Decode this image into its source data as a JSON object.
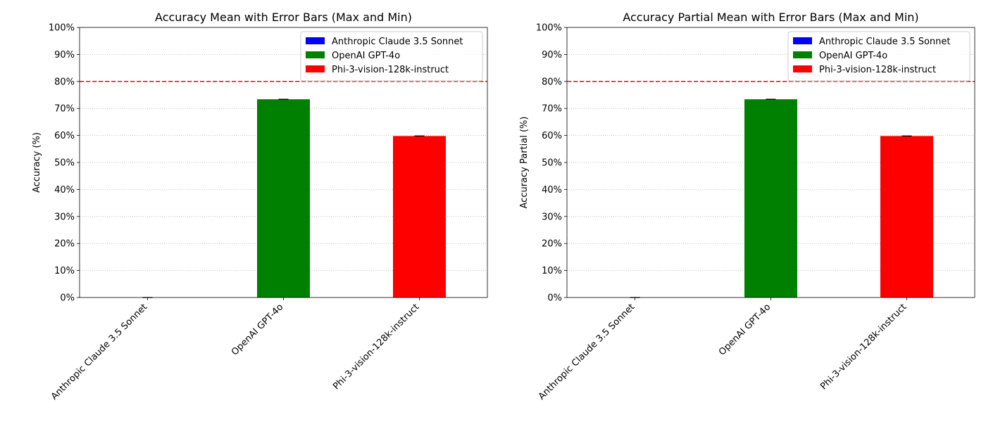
{
  "chart_data": [
    {
      "type": "bar",
      "title": "Accuracy Mean with Error Bars (Max and Min)",
      "xlabel": "",
      "ylabel": "Accuracy (%)",
      "categories": [
        "Anthropic Claude 3.5 Sonnet",
        "OpenAI GPT-4o",
        "Phi-3-vision-128k-instruct"
      ],
      "values": [
        0,
        73.4,
        59.8
      ],
      "error_min": [
        0,
        73.4,
        59.8
      ],
      "error_max": [
        0,
        73.4,
        59.8
      ],
      "colors": [
        "#0000ff",
        "#008000",
        "#ff0000"
      ],
      "ylim": [
        0,
        100
      ],
      "yticks": [
        "0%",
        "10%",
        "20%",
        "30%",
        "40%",
        "50%",
        "60%",
        "70%",
        "80%",
        "90%",
        "100%"
      ],
      "threshold": 80,
      "threshold_color": "#ff0000",
      "grid": "y-dotted",
      "legend": {
        "placement": "top-right",
        "entries": [
          "Anthropic Claude 3.5 Sonnet",
          "OpenAI GPT-4o",
          "Phi-3-vision-128k-instruct"
        ]
      }
    },
    {
      "type": "bar",
      "title": "Accuracy Partial Mean with Error Bars (Max and Min)",
      "xlabel": "",
      "ylabel": "Accuracy Partial (%)",
      "categories": [
        "Anthropic Claude 3.5 Sonnet",
        "OpenAI GPT-4o",
        "Phi-3-vision-128k-instruct"
      ],
      "values": [
        0,
        73.4,
        59.8
      ],
      "error_min": [
        0,
        73.4,
        59.8
      ],
      "error_max": [
        0,
        73.4,
        59.8
      ],
      "colors": [
        "#0000ff",
        "#008000",
        "#ff0000"
      ],
      "ylim": [
        0,
        100
      ],
      "yticks": [
        "0%",
        "10%",
        "20%",
        "30%",
        "40%",
        "50%",
        "60%",
        "70%",
        "80%",
        "90%",
        "100%"
      ],
      "threshold": 80,
      "threshold_color": "#ff0000",
      "grid": "y-dotted",
      "legend": {
        "placement": "top-right",
        "entries": [
          "Anthropic Claude 3.5 Sonnet",
          "OpenAI GPT-4o",
          "Phi-3-vision-128k-instruct"
        ]
      }
    }
  ]
}
